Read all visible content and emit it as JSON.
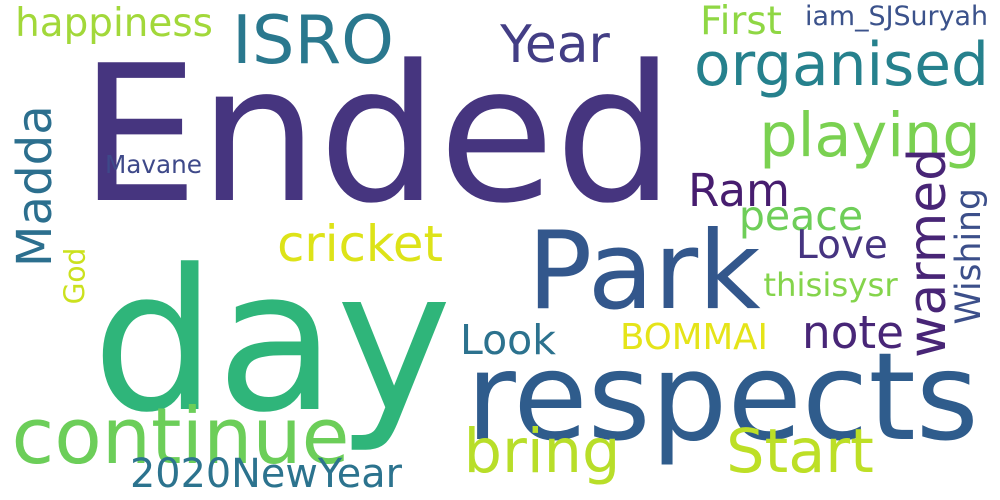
{
  "words": [
    {
      "id": "ended",
      "text": "Ended",
      "color": "#46357f"
    },
    {
      "id": "day",
      "text": "day",
      "color": "#2fb57a"
    },
    {
      "id": "park",
      "text": "Park",
      "color": "#33578c"
    },
    {
      "id": "respects",
      "text": "respects",
      "color": "#2f5c8c"
    },
    {
      "id": "continue",
      "text": "continue",
      "color": "#6cce59"
    },
    {
      "id": "isro",
      "text": "ISRO",
      "color": "#2a788e"
    },
    {
      "id": "organised",
      "text": "organised",
      "color": "#26818d"
    },
    {
      "id": "playing",
      "text": "playing",
      "color": "#7ad151"
    },
    {
      "id": "year",
      "text": "Year",
      "color": "#433e85"
    },
    {
      "id": "happiness",
      "text": "happiness",
      "color": "#a2d83a"
    },
    {
      "id": "first",
      "text": "First",
      "color": "#8fd744"
    },
    {
      "id": "iam_sjsuryah",
      "text": "iam_SJSuryah",
      "color": "#3b528b"
    },
    {
      "id": "madda",
      "text": "Madda",
      "color": "#2c6f8e"
    },
    {
      "id": "mavane",
      "text": "Mavane",
      "color": "#3e4989"
    },
    {
      "id": "ram",
      "text": "Ram",
      "color": "#471d6f"
    },
    {
      "id": "warmed",
      "text": "warmed",
      "color": "#482576"
    },
    {
      "id": "wishing",
      "text": "Wishing",
      "color": "#3c4f8a"
    },
    {
      "id": "peace",
      "text": "peace",
      "color": "#6ece58"
    },
    {
      "id": "cricket",
      "text": "cricket",
      "color": "#dde318"
    },
    {
      "id": "love",
      "text": "Love",
      "color": "#463480"
    },
    {
      "id": "god",
      "text": "God",
      "color": "#cbe11e"
    },
    {
      "id": "thisisysr",
      "text": "thisisysr",
      "color": "#84d44b"
    },
    {
      "id": "look",
      "text": "Look",
      "color": "#2c728e"
    },
    {
      "id": "bommai",
      "text": "BOMMAI",
      "color": "#e5e419"
    },
    {
      "id": "note",
      "text": "note",
      "color": "#482677"
    },
    {
      "id": "bring",
      "text": "bring",
      "color": "#b8de29"
    },
    {
      "id": "start",
      "text": "Start",
      "color": "#bddf26"
    },
    {
      "id": "2020newyear",
      "text": "2020NewYear",
      "color": "#2c738e"
    }
  ]
}
